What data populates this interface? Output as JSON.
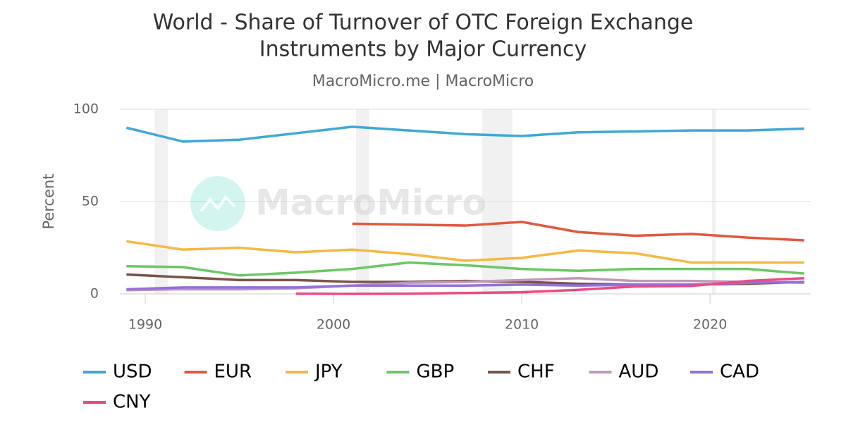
{
  "chart_data": {
    "type": "line",
    "title": [
      "World - Share of Turnover of OTC Foreign Exchange",
      "Instruments by Major Currency"
    ],
    "subtitle": "MacroMicro.me | MacroMicro",
    "watermark": "MacroMicro",
    "y_label": "Percent",
    "x": [
      1989,
      1992,
      1995,
      1998,
      2001,
      2004,
      2007,
      2010,
      2013,
      2016,
      2019,
      2022,
      2025
    ],
    "xlim": [
      1988.65,
      2025.35
    ],
    "xticks": [
      1990,
      2000,
      2010,
      2020
    ],
    "ylim": [
      0,
      100
    ],
    "yticks": [
      0,
      50,
      100
    ],
    "grid": true,
    "shaded_ranges": [
      [
        1990.5,
        1991.2
      ],
      [
        2001.2,
        2001.9
      ],
      [
        2007.9,
        2009.5
      ],
      [
        2020.1,
        2020.3
      ]
    ],
    "series": [
      {
        "name": "USD",
        "color": "#3fa9d6",
        "values": [
          90,
          82.5,
          83.5,
          87,
          90.5,
          88.5,
          86.5,
          85.5,
          87.5,
          88,
          88.5,
          88.5,
          89.5
        ]
      },
      {
        "name": "EUR",
        "color": "#e3573f",
        "values": [
          null,
          null,
          null,
          null,
          38,
          37.5,
          37,
          39,
          33.5,
          31.5,
          32.5,
          30.5,
          29
        ]
      },
      {
        "name": "JPY",
        "color": "#f5b942",
        "values": [
          28.5,
          24,
          25,
          22.5,
          24,
          21.5,
          18,
          19.5,
          23.5,
          22,
          17,
          17,
          17
        ]
      },
      {
        "name": "GBP",
        "color": "#6cc765",
        "values": [
          15,
          14.5,
          10,
          11.5,
          13.5,
          17,
          15.5,
          13.5,
          12.5,
          13.5,
          13.5,
          13.5,
          11
        ]
      },
      {
        "name": "CHF",
        "color": "#7a5348",
        "values": [
          10.5,
          9,
          7.5,
          7.5,
          6.5,
          6.5,
          7,
          6.5,
          5.5,
          5,
          5,
          5.5,
          6.5
        ]
      },
      {
        "name": "AUD",
        "color": "#c297b8",
        "values": [
          2,
          2.5,
          2.5,
          3,
          4.5,
          6,
          6.5,
          7.5,
          8.5,
          7,
          7,
          6.5,
          6
        ]
      },
      {
        "name": "CAD",
        "color": "#9370db",
        "values": [
          2.5,
          3.5,
          3.5,
          3.5,
          4.5,
          4.5,
          4.5,
          5,
          4.5,
          5,
          5,
          6,
          6.5
        ]
      },
      {
        "name": "CNY",
        "color": "#e94b86",
        "values": [
          null,
          null,
          null,
          0.1,
          0,
          0.1,
          0.5,
          0.9,
          2.2,
          4,
          4.3,
          7,
          8.5
        ]
      }
    ]
  }
}
